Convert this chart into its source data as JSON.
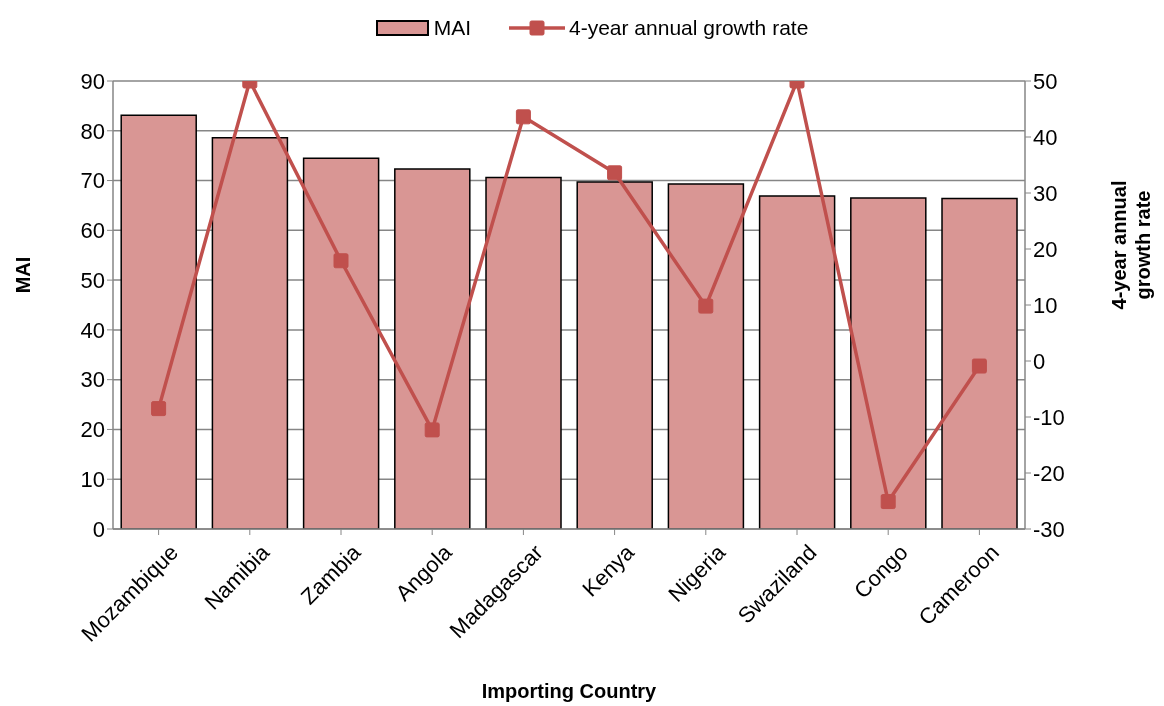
{
  "chart_data": {
    "type": "bar",
    "xlabel": "Importing Country",
    "ylabel": "MAI",
    "y2label": "4-year annual growth rate",
    "categories": [
      "Mozambique",
      "Namibia",
      "Zambia",
      "Angola",
      "Madagascar",
      "Kenya",
      "Nigeria",
      "Swaziland",
      "Congo",
      "Cameroon"
    ],
    "series": [
      {
        "name": "MAI",
        "color": "#d99694",
        "values": [
          83.1,
          78.6,
          74.5,
          72.3,
          70.6,
          69.7,
          69.3,
          66.9,
          66.5,
          66.4
        ]
      },
      {
        "name": "4-year annual growth rate",
        "type": "line",
        "axis": "y2",
        "color": "#c0504d",
        "values": [
          -8.5,
          50,
          17.9,
          -12.3,
          43.6,
          33.6,
          9.8,
          50,
          -25.1,
          -0.9
        ]
      }
    ],
    "ylim": [
      0,
      90
    ],
    "yticks": [
      0,
      10,
      20,
      30,
      40,
      50,
      60,
      70,
      80,
      90
    ],
    "y2lim": [
      -30,
      50
    ],
    "y2ticks": [
      -30,
      -20,
      -10,
      0,
      10,
      20,
      30,
      40,
      50
    ],
    "grid": "y",
    "legend": "top",
    "marker": "square",
    "line_style": "solid"
  }
}
